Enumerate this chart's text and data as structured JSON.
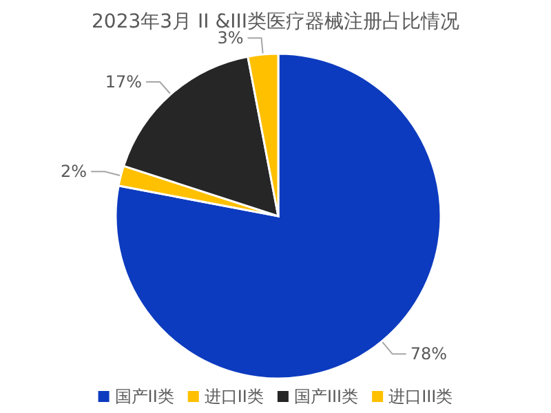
{
  "chart_data": {
    "type": "pie",
    "title": "2023年3月 II &III类医疗器械注册占比情况",
    "categories": [
      "国产II类",
      "进口II类",
      "国产III类",
      "进口III类"
    ],
    "values": [
      78,
      2,
      17,
      3
    ],
    "colors": [
      "#0d3bbf",
      "#ffc000",
      "#262626",
      "#ffc000"
    ],
    "value_labels": [
      "78%",
      "2%",
      "17%",
      "3%"
    ],
    "legend": "bottom"
  }
}
